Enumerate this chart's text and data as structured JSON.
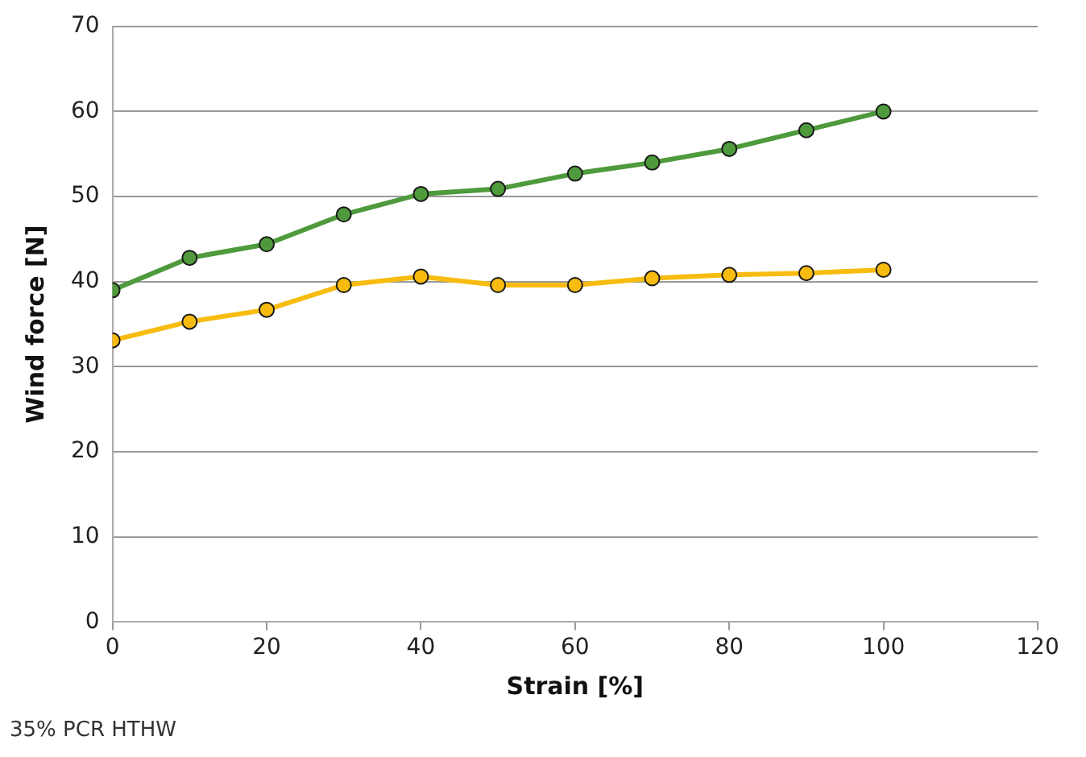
{
  "chart_data": {
    "type": "line",
    "xlabel": "Strain [%]",
    "ylabel": "Wind force [N]",
    "x": [
      0,
      10,
      20,
      30,
      40,
      50,
      60,
      70,
      80,
      90,
      100
    ],
    "series": [
      {
        "color": "#4e9a3c",
        "values": [
          39.0,
          42.8,
          44.4,
          47.9,
          50.3,
          50.9,
          52.7,
          54.0,
          55.6,
          57.8,
          60.0
        ]
      },
      {
        "color": "#f7bc0f",
        "values": [
          33.1,
          35.3,
          36.7,
          39.6,
          40.6,
          39.6,
          39.6,
          40.4,
          40.8,
          41.0,
          41.4
        ]
      }
    ],
    "xlim": [
      0,
      120
    ],
    "xticks": [
      0,
      20,
      40,
      60,
      80,
      100,
      120
    ],
    "ylim": [
      0,
      70
    ],
    "yticks": [
      0,
      10,
      20,
      30,
      40,
      50,
      60,
      70
    ],
    "grid": "y",
    "legend": false,
    "marker": "circle",
    "line_style": "solid",
    "annotations": [
      "35% PCR HTHW"
    ]
  }
}
